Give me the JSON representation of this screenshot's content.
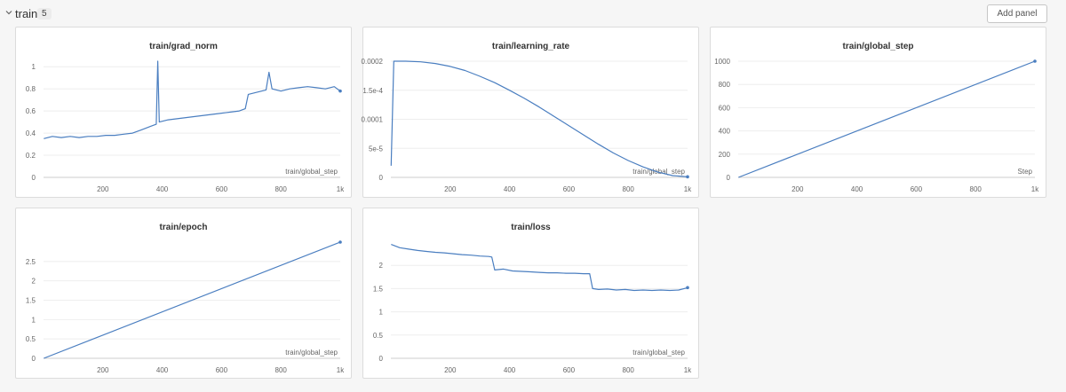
{
  "section": {
    "title": "train",
    "count": "5",
    "add_panel_label": "Add panel"
  },
  "colors": {
    "line": "#4a7ec0",
    "grid": "#eeeeee",
    "axis": "#cccccc",
    "tick": "#666666"
  },
  "chart_data": [
    {
      "type": "line",
      "title": "train/grad_norm",
      "xlabel": "train/global_step",
      "xlim": [
        0,
        1000
      ],
      "ylim": [
        0,
        1.05
      ],
      "xticks": [
        200,
        400,
        600,
        800,
        1000
      ],
      "xtick_labels": [
        "200",
        "400",
        "600",
        "800",
        "1k"
      ],
      "yticks": [
        0,
        0.2,
        0.4,
        0.6,
        0.8,
        1
      ],
      "ytick_labels": [
        "0",
        "0.2",
        "0.4",
        "0.6",
        "0.8",
        "1"
      ],
      "series": [
        {
          "x": [
            1,
            30,
            60,
            90,
            120,
            150,
            180,
            210,
            240,
            270,
            300,
            330,
            360,
            380,
            385,
            390,
            420,
            450,
            480,
            510,
            540,
            570,
            600,
            630,
            660,
            680,
            690,
            720,
            750,
            760,
            770,
            800,
            830,
            860,
            890,
            920,
            950,
            980,
            1000
          ],
          "y": [
            0.35,
            0.37,
            0.36,
            0.37,
            0.36,
            0.37,
            0.37,
            0.38,
            0.38,
            0.39,
            0.4,
            0.43,
            0.46,
            0.48,
            1.05,
            0.5,
            0.52,
            0.53,
            0.54,
            0.55,
            0.56,
            0.57,
            0.58,
            0.59,
            0.6,
            0.62,
            0.75,
            0.77,
            0.79,
            0.95,
            0.8,
            0.78,
            0.8,
            0.81,
            0.82,
            0.81,
            0.8,
            0.82,
            0.78
          ]
        }
      ]
    },
    {
      "type": "line",
      "title": "train/learning_rate",
      "xlabel": "train/global_step",
      "xlim": [
        0,
        1000
      ],
      "ylim": [
        0,
        0.0002
      ],
      "xticks": [
        200,
        400,
        600,
        800,
        1000
      ],
      "xtick_labels": [
        "200",
        "400",
        "600",
        "800",
        "1k"
      ],
      "yticks": [
        0,
        5e-05,
        0.0001,
        0.00015,
        0.0002
      ],
      "ytick_labels": [
        "0",
        "5e-5",
        "0.0001",
        "1.5e-4",
        "0.0002"
      ],
      "series": [
        {
          "x": [
            1,
            10,
            50,
            100,
            150,
            200,
            250,
            300,
            350,
            400,
            450,
            500,
            550,
            600,
            650,
            700,
            750,
            800,
            850,
            900,
            950,
            1000
          ],
          "y": [
            2e-05,
            0.0002,
            0.0002,
            0.000199,
            0.000196,
            0.000191,
            0.000184,
            0.000174,
            0.000163,
            0.00015,
            0.000136,
            0.000121,
            0.000105,
            8.9e-05,
            7.3e-05,
            5.7e-05,
            4.2e-05,
            2.9e-05,
            1.8e-05,
            9e-06,
            3e-06,
            1e-06
          ]
        }
      ]
    },
    {
      "type": "line",
      "title": "train/global_step",
      "xlabel": "Step",
      "xlim": [
        0,
        1000
      ],
      "ylim": [
        0,
        1000
      ],
      "xticks": [
        200,
        400,
        600,
        800,
        1000
      ],
      "xtick_labels": [
        "200",
        "400",
        "600",
        "800",
        "1k"
      ],
      "yticks": [
        0,
        200,
        400,
        600,
        800,
        1000
      ],
      "ytick_labels": [
        "0",
        "200",
        "400",
        "600",
        "800",
        "1000"
      ],
      "series": [
        {
          "x": [
            1,
            1000
          ],
          "y": [
            0,
            1000
          ]
        }
      ]
    },
    {
      "type": "line",
      "title": "train/epoch",
      "xlabel": "train/global_step",
      "xlim": [
        0,
        1000
      ],
      "ylim": [
        0,
        3
      ],
      "xticks": [
        200,
        400,
        600,
        800,
        1000
      ],
      "xtick_labels": [
        "200",
        "400",
        "600",
        "800",
        "1k"
      ],
      "yticks": [
        0,
        0.5,
        1,
        1.5,
        2,
        2.5
      ],
      "ytick_labels": [
        "0",
        "0.5",
        "1",
        "1.5",
        "2",
        "2.5"
      ],
      "series": [
        {
          "x": [
            1,
            1000
          ],
          "y": [
            0,
            3
          ]
        }
      ]
    },
    {
      "type": "line",
      "title": "train/loss",
      "xlabel": "train/global_step",
      "xlim": [
        0,
        1000
      ],
      "ylim": [
        0,
        2.5
      ],
      "xticks": [
        200,
        400,
        600,
        800,
        1000
      ],
      "xtick_labels": [
        "200",
        "400",
        "600",
        "800",
        "1k"
      ],
      "yticks": [
        0,
        0.5,
        1,
        1.5,
        2
      ],
      "ytick_labels": [
        "0",
        "0.5",
        "1",
        "1.5",
        "2"
      ],
      "series": [
        {
          "x": [
            1,
            30,
            60,
            90,
            120,
            150,
            180,
            210,
            240,
            270,
            300,
            330,
            340,
            350,
            380,
            410,
            440,
            470,
            500,
            530,
            560,
            590,
            620,
            650,
            670,
            680,
            700,
            730,
            760,
            790,
            820,
            850,
            880,
            910,
            940,
            970,
            1000
          ],
          "y": [
            2.45,
            2.38,
            2.35,
            2.32,
            2.3,
            2.28,
            2.27,
            2.25,
            2.23,
            2.22,
            2.2,
            2.19,
            2.18,
            1.9,
            1.92,
            1.88,
            1.87,
            1.86,
            1.85,
            1.84,
            1.84,
            1.83,
            1.83,
            1.82,
            1.82,
            1.5,
            1.48,
            1.49,
            1.47,
            1.48,
            1.46,
            1.47,
            1.46,
            1.47,
            1.46,
            1.47,
            1.52
          ]
        }
      ]
    }
  ]
}
